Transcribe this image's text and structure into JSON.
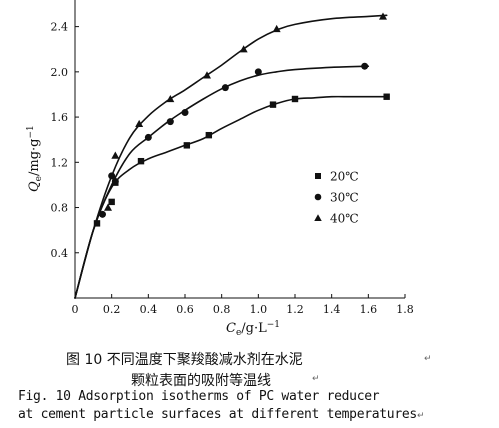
{
  "chart_data": {
    "type": "line",
    "xlabel": "Ce/g·L−1",
    "xlabel_main": "C",
    "xlabel_sub": "e",
    "xlabel_unit": "/g·L",
    "xlabel_sup": "−1",
    "ylabel": "Qe/mg·g−1",
    "ylabel_main": "Q",
    "ylabel_sub": "e",
    "ylabel_unit": "/mg·g",
    "ylabel_sup": "−1",
    "xlim": [
      0,
      1.8
    ],
    "ylim": [
      0,
      2.6
    ],
    "xticks": [
      "0",
      "0.2",
      "0.4",
      "0.6",
      "0.8",
      "1.0",
      "1.2",
      "1.4",
      "1.6",
      "1.8"
    ],
    "yticks": [
      "0.4",
      "0.8",
      "1.2",
      "1.6",
      "2.0",
      "2.4"
    ],
    "legend_position": "right-middle",
    "series": [
      {
        "name": "20℃",
        "marker": "square",
        "x": [
          0.12,
          0.2,
          0.22,
          0.36,
          0.61,
          0.73,
          1.08,
          1.2,
          1.7
        ],
        "y": [
          0.66,
          0.85,
          1.02,
          1.21,
          1.35,
          1.44,
          1.71,
          1.76,
          1.78
        ],
        "curve_x": [
          0.0,
          0.1,
          0.2,
          0.3,
          0.4,
          0.5,
          0.6,
          0.7,
          0.8,
          0.9,
          1.0,
          1.1,
          1.2,
          1.3,
          1.4,
          1.5,
          1.6,
          1.7
        ],
        "curve_y": [
          0.0,
          0.6,
          0.98,
          1.14,
          1.23,
          1.29,
          1.35,
          1.41,
          1.5,
          1.58,
          1.66,
          1.72,
          1.76,
          1.77,
          1.78,
          1.78,
          1.78,
          1.78
        ]
      },
      {
        "name": "30℃",
        "marker": "circle",
        "x": [
          0.15,
          0.2,
          0.22,
          0.4,
          0.52,
          0.6,
          0.82,
          1.0,
          1.58
        ],
        "y": [
          0.74,
          1.08,
          1.03,
          1.42,
          1.56,
          1.64,
          1.86,
          2.0,
          2.05
        ],
        "curve_x": [
          0.0,
          0.1,
          0.2,
          0.3,
          0.4,
          0.5,
          0.6,
          0.7,
          0.8,
          0.9,
          1.0,
          1.1,
          1.2,
          1.4,
          1.6
        ],
        "curve_y": [
          0.0,
          0.6,
          1.0,
          1.28,
          1.42,
          1.55,
          1.66,
          1.76,
          1.85,
          1.92,
          1.97,
          2.0,
          2.02,
          2.04,
          2.05
        ]
      },
      {
        "name": "40℃",
        "marker": "triangle",
        "x": [
          0.18,
          0.22,
          0.35,
          0.52,
          0.72,
          0.92,
          1.1,
          1.68
        ],
        "y": [
          0.8,
          1.26,
          1.54,
          1.76,
          1.97,
          2.2,
          2.38,
          2.49
        ],
        "curve_x": [
          0.0,
          0.1,
          0.2,
          0.3,
          0.4,
          0.5,
          0.6,
          0.7,
          0.8,
          0.9,
          1.0,
          1.1,
          1.2,
          1.4,
          1.6,
          1.7
        ],
        "curve_y": [
          0.0,
          0.6,
          1.08,
          1.42,
          1.61,
          1.74,
          1.84,
          1.95,
          2.06,
          2.18,
          2.29,
          2.37,
          2.42,
          2.47,
          2.49,
          2.5
        ]
      }
    ]
  },
  "caption": {
    "zh_line1": "图 10   不同温度下聚羧酸减水剂在水泥",
    "zh_line2": "颗粒表面的吸附等温线",
    "en_line1": "Fig. 10    Adsorption isotherms of PC water reducer",
    "en_line2": "at cement particle surfaces at different temperatures"
  },
  "edit_marks": {
    "after_zh_line1": "↵",
    "after_zh_line2": "↵",
    "after_en_line2": "↵"
  }
}
